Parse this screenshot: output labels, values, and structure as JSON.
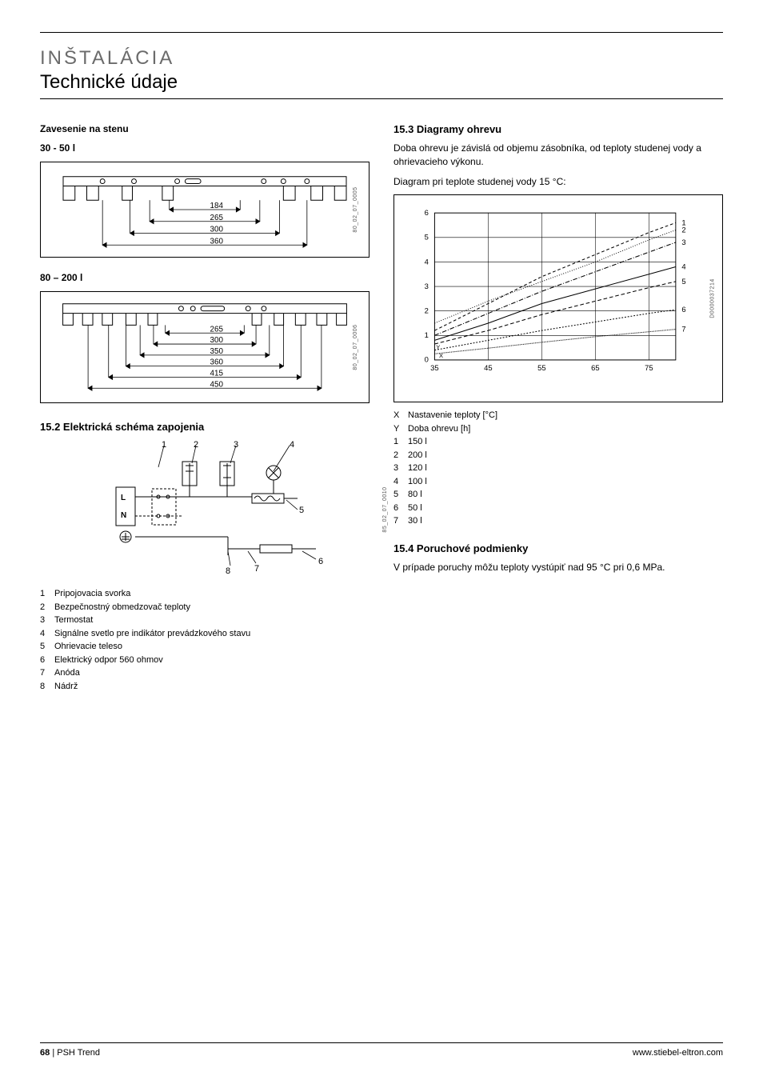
{
  "header": {
    "title_main": "INŠTALÁCIA",
    "title_sub": "Technické údaje"
  },
  "left": {
    "wall_mount_heading": "Zavesenie na stenu",
    "range_a_label": "30 - 50 l",
    "range_a_dims": [
      "184",
      "265",
      "300",
      "360"
    ],
    "range_a_ref": "80_02_07_0005",
    "range_b_label": "80 – 200 l",
    "range_b_dims": [
      "265",
      "300",
      "350",
      "360",
      "415",
      "450"
    ],
    "range_b_ref": "80_02_07_0006",
    "section_15_2": "15.2  Elektrická schéma zapojenia",
    "wiring_ref": "85_02_07_0010",
    "wiring_callouts": [
      "1",
      "2",
      "3",
      "4",
      "5",
      "6",
      "7",
      "8"
    ],
    "wiring_terminals": {
      "L": "L",
      "N": "N"
    },
    "wiring_legend": [
      {
        "n": "1",
        "t": "Pripojovacia svorka"
      },
      {
        "n": "2",
        "t": "Bezpečnostný obmedzovač teploty"
      },
      {
        "n": "3",
        "t": "Termostat"
      },
      {
        "n": "4",
        "t": "Signálne svetlo pre indikátor prevádzkového stavu"
      },
      {
        "n": "5",
        "t": "Ohrievacie teleso"
      },
      {
        "n": "6",
        "t": "Elektrický odpor 560 ohmov"
      },
      {
        "n": "7",
        "t": "Anóda"
      },
      {
        "n": "8",
        "t": "Nádrž"
      }
    ]
  },
  "right": {
    "section_15_3": "15.3  Diagramy ohrevu",
    "intro_15_3": "Doba ohrevu je závislá od objemu zásobníka, od teploty studenej vody a ohrievacieho výkonu.",
    "diagram_note": "Diagram pri teplote studenej vody 15 °C:",
    "chart": {
      "type": "line",
      "x_ticks": [
        "35",
        "45",
        "55",
        "65",
        "75"
      ],
      "y_ticks": [
        "0",
        "1",
        "2",
        "3",
        "4",
        "5",
        "6"
      ],
      "xlim": [
        35,
        80
      ],
      "ylim": [
        0,
        6
      ],
      "series_labels": [
        "1",
        "2",
        "3",
        "4",
        "5",
        "6",
        "7"
      ],
      "series": [
        {
          "name": "1",
          "dash": "4 3",
          "points": [
            [
              35,
              1.2
            ],
            [
              45,
              2.3
            ],
            [
              55,
              3.4
            ],
            [
              65,
              4.3
            ],
            [
              75,
              5.2
            ],
            [
              80,
              5.6
            ]
          ]
        },
        {
          "name": "2",
          "dash": "1 2",
          "points": [
            [
              35,
              1.5
            ],
            [
              45,
              2.4
            ],
            [
              55,
              3.2
            ],
            [
              65,
              4.0
            ],
            [
              75,
              4.9
            ],
            [
              80,
              5.3
            ]
          ]
        },
        {
          "name": "3",
          "dash": "6 2 1 2",
          "points": [
            [
              35,
              1.0
            ],
            [
              45,
              1.9
            ],
            [
              55,
              2.8
            ],
            [
              65,
              3.6
            ],
            [
              75,
              4.4
            ],
            [
              80,
              4.8
            ]
          ]
        },
        {
          "name": "4",
          "dash": "0",
          "points": [
            [
              35,
              0.8
            ],
            [
              45,
              1.5
            ],
            [
              55,
              2.3
            ],
            [
              65,
              2.9
            ],
            [
              75,
              3.5
            ],
            [
              80,
              3.8
            ]
          ]
        },
        {
          "name": "5",
          "dash": "5 3",
          "points": [
            [
              35,
              0.65
            ],
            [
              45,
              1.2
            ],
            [
              55,
              1.85
            ],
            [
              65,
              2.4
            ],
            [
              75,
              2.95
            ],
            [
              80,
              3.2
            ]
          ]
        },
        {
          "name": "6",
          "dash": "2 2",
          "points": [
            [
              35,
              0.4
            ],
            [
              45,
              0.8
            ],
            [
              55,
              1.2
            ],
            [
              65,
              1.55
            ],
            [
              75,
              1.9
            ],
            [
              80,
              2.05
            ]
          ]
        },
        {
          "name": "7",
          "dash": "1 1",
          "points": [
            [
              35,
              0.25
            ],
            [
              45,
              0.48
            ],
            [
              55,
              0.72
            ],
            [
              65,
              0.95
            ],
            [
              75,
              1.15
            ],
            [
              80,
              1.25
            ]
          ]
        }
      ],
      "x_label": "X",
      "y_label": "Y",
      "grid_color": "#000000",
      "line_color": "#000000",
      "background": "#ffffff",
      "ref": "D0000037214"
    },
    "chart_legend": [
      {
        "n": "X",
        "t": "Nastavenie teploty [°C]"
      },
      {
        "n": "Y",
        "t": "Doba ohrevu [h]"
      },
      {
        "n": "1",
        "t": "150 l"
      },
      {
        "n": "2",
        "t": "200 l"
      },
      {
        "n": "3",
        "t": "120 l"
      },
      {
        "n": "4",
        "t": "100 l"
      },
      {
        "n": "5",
        "t": "80 l"
      },
      {
        "n": "6",
        "t": "50 l"
      },
      {
        "n": "7",
        "t": "30 l"
      }
    ],
    "section_15_4": "15.4  Poruchové podmienky",
    "text_15_4": "V prípade poruchy môžu teploty vystúpiť nad 95 °C pri 0,6 MPa."
  },
  "footer": {
    "page": "68",
    "product": "PSH Trend",
    "url": "www.stiebel-eltron.com"
  }
}
